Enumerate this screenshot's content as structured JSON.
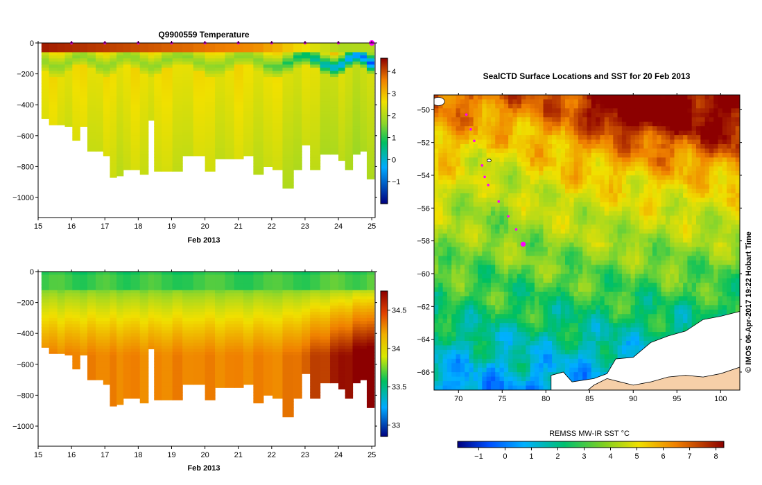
{
  "chart_data": [
    {
      "type": "heatmap",
      "id": "temp",
      "title": "Q9900559  Temperature",
      "xlabel": "Feb 2013",
      "ylabel": "",
      "xlim": [
        15,
        25.1
      ],
      "ylim": [
        -1130,
        0
      ],
      "x_ticks": [
        15,
        16,
        17,
        18,
        19,
        20,
        21,
        22,
        23,
        24,
        25
      ],
      "y_ticks": [
        0,
        -200,
        -400,
        -600,
        -800,
        -1000
      ],
      "colorbar": {
        "min": -2.0,
        "max": 4.6,
        "ticks": [
          4,
          3,
          2,
          1,
          0,
          -1
        ]
      },
      "profile_days": [
        15.2,
        15.45,
        15.7,
        15.9,
        16.15,
        16.35,
        16.6,
        16.85,
        17.05,
        17.25,
        17.45,
        17.65,
        17.9,
        18.2,
        18.4,
        18.55,
        18.85,
        19.2,
        19.45,
        19.85,
        20.15,
        20.45,
        20.75,
        21.0,
        21.3,
        21.6,
        21.9,
        22.15,
        22.5,
        22.8,
        23.0,
        23.3,
        23.6,
        23.9,
        24.1,
        24.3,
        24.55,
        24.75,
        24.95
      ],
      "profile_max_depth": [
        490,
        530,
        530,
        540,
        630,
        540,
        700,
        700,
        730,
        870,
        860,
        820,
        820,
        850,
        500,
        830,
        830,
        830,
        730,
        730,
        830,
        750,
        750,
        750,
        730,
        850,
        800,
        820,
        940,
        820,
        660,
        820,
        720,
        720,
        760,
        820,
        720,
        700,
        880
      ],
      "marker_days": [
        16,
        17,
        18,
        19,
        20,
        21,
        22,
        23,
        24,
        25
      ]
    },
    {
      "type": "heatmap",
      "id": "salinity",
      "title": "",
      "xlabel": "Feb 2013",
      "ylabel": "",
      "xlim": [
        15,
        25.1
      ],
      "ylim": [
        -1130,
        0
      ],
      "x_ticks": [
        15,
        16,
        17,
        18,
        19,
        20,
        21,
        22,
        23,
        24,
        25
      ],
      "y_ticks": [
        0,
        -200,
        -400,
        -600,
        -800,
        -1000
      ],
      "colorbar": {
        "min": 32.85,
        "max": 34.75,
        "ticks": [
          34.5,
          34,
          33.5,
          33
        ]
      }
    },
    {
      "type": "heatmap",
      "id": "sst_map",
      "title": "SealCTD Surface Locations and SST for 20 Feb 2013",
      "xlabel": "",
      "ylabel": "",
      "xlim": [
        67.2,
        102.2
      ],
      "ylim": [
        -67.1,
        -49.1
      ],
      "x_ticks": [
        70,
        75,
        80,
        85,
        90,
        95,
        100
      ],
      "y_ticks": [
        -50,
        -52,
        -54,
        -56,
        -58,
        -60,
        -62,
        -64,
        -66
      ],
      "colorbar": {
        "label": "REMSS MW-IR SST °C",
        "min": -1.8,
        "max": 8.3,
        "ticks": [
          -1,
          0,
          1,
          2,
          3,
          4,
          5,
          6,
          7,
          8
        ]
      },
      "track": [
        {
          "lon": 70.9,
          "lat": -50.3
        },
        {
          "lon": 71.4,
          "lat": -51.2
        },
        {
          "lon": 71.8,
          "lat": -51.9
        },
        {
          "lon": 72.7,
          "lat": -53.4
        },
        {
          "lon": 73.0,
          "lat": -54.1
        },
        {
          "lon": 73.4,
          "lat": -54.6
        },
        {
          "lon": 74.6,
          "lat": -55.6
        },
        {
          "lon": 75.7,
          "lat": -56.5
        },
        {
          "lon": 76.6,
          "lat": -57.3
        }
      ],
      "current_position": {
        "lon": 77.4,
        "lat": -58.2
      },
      "credit": "© IMOS 06-Apr-2017 19:22 Hobart Time"
    }
  ]
}
